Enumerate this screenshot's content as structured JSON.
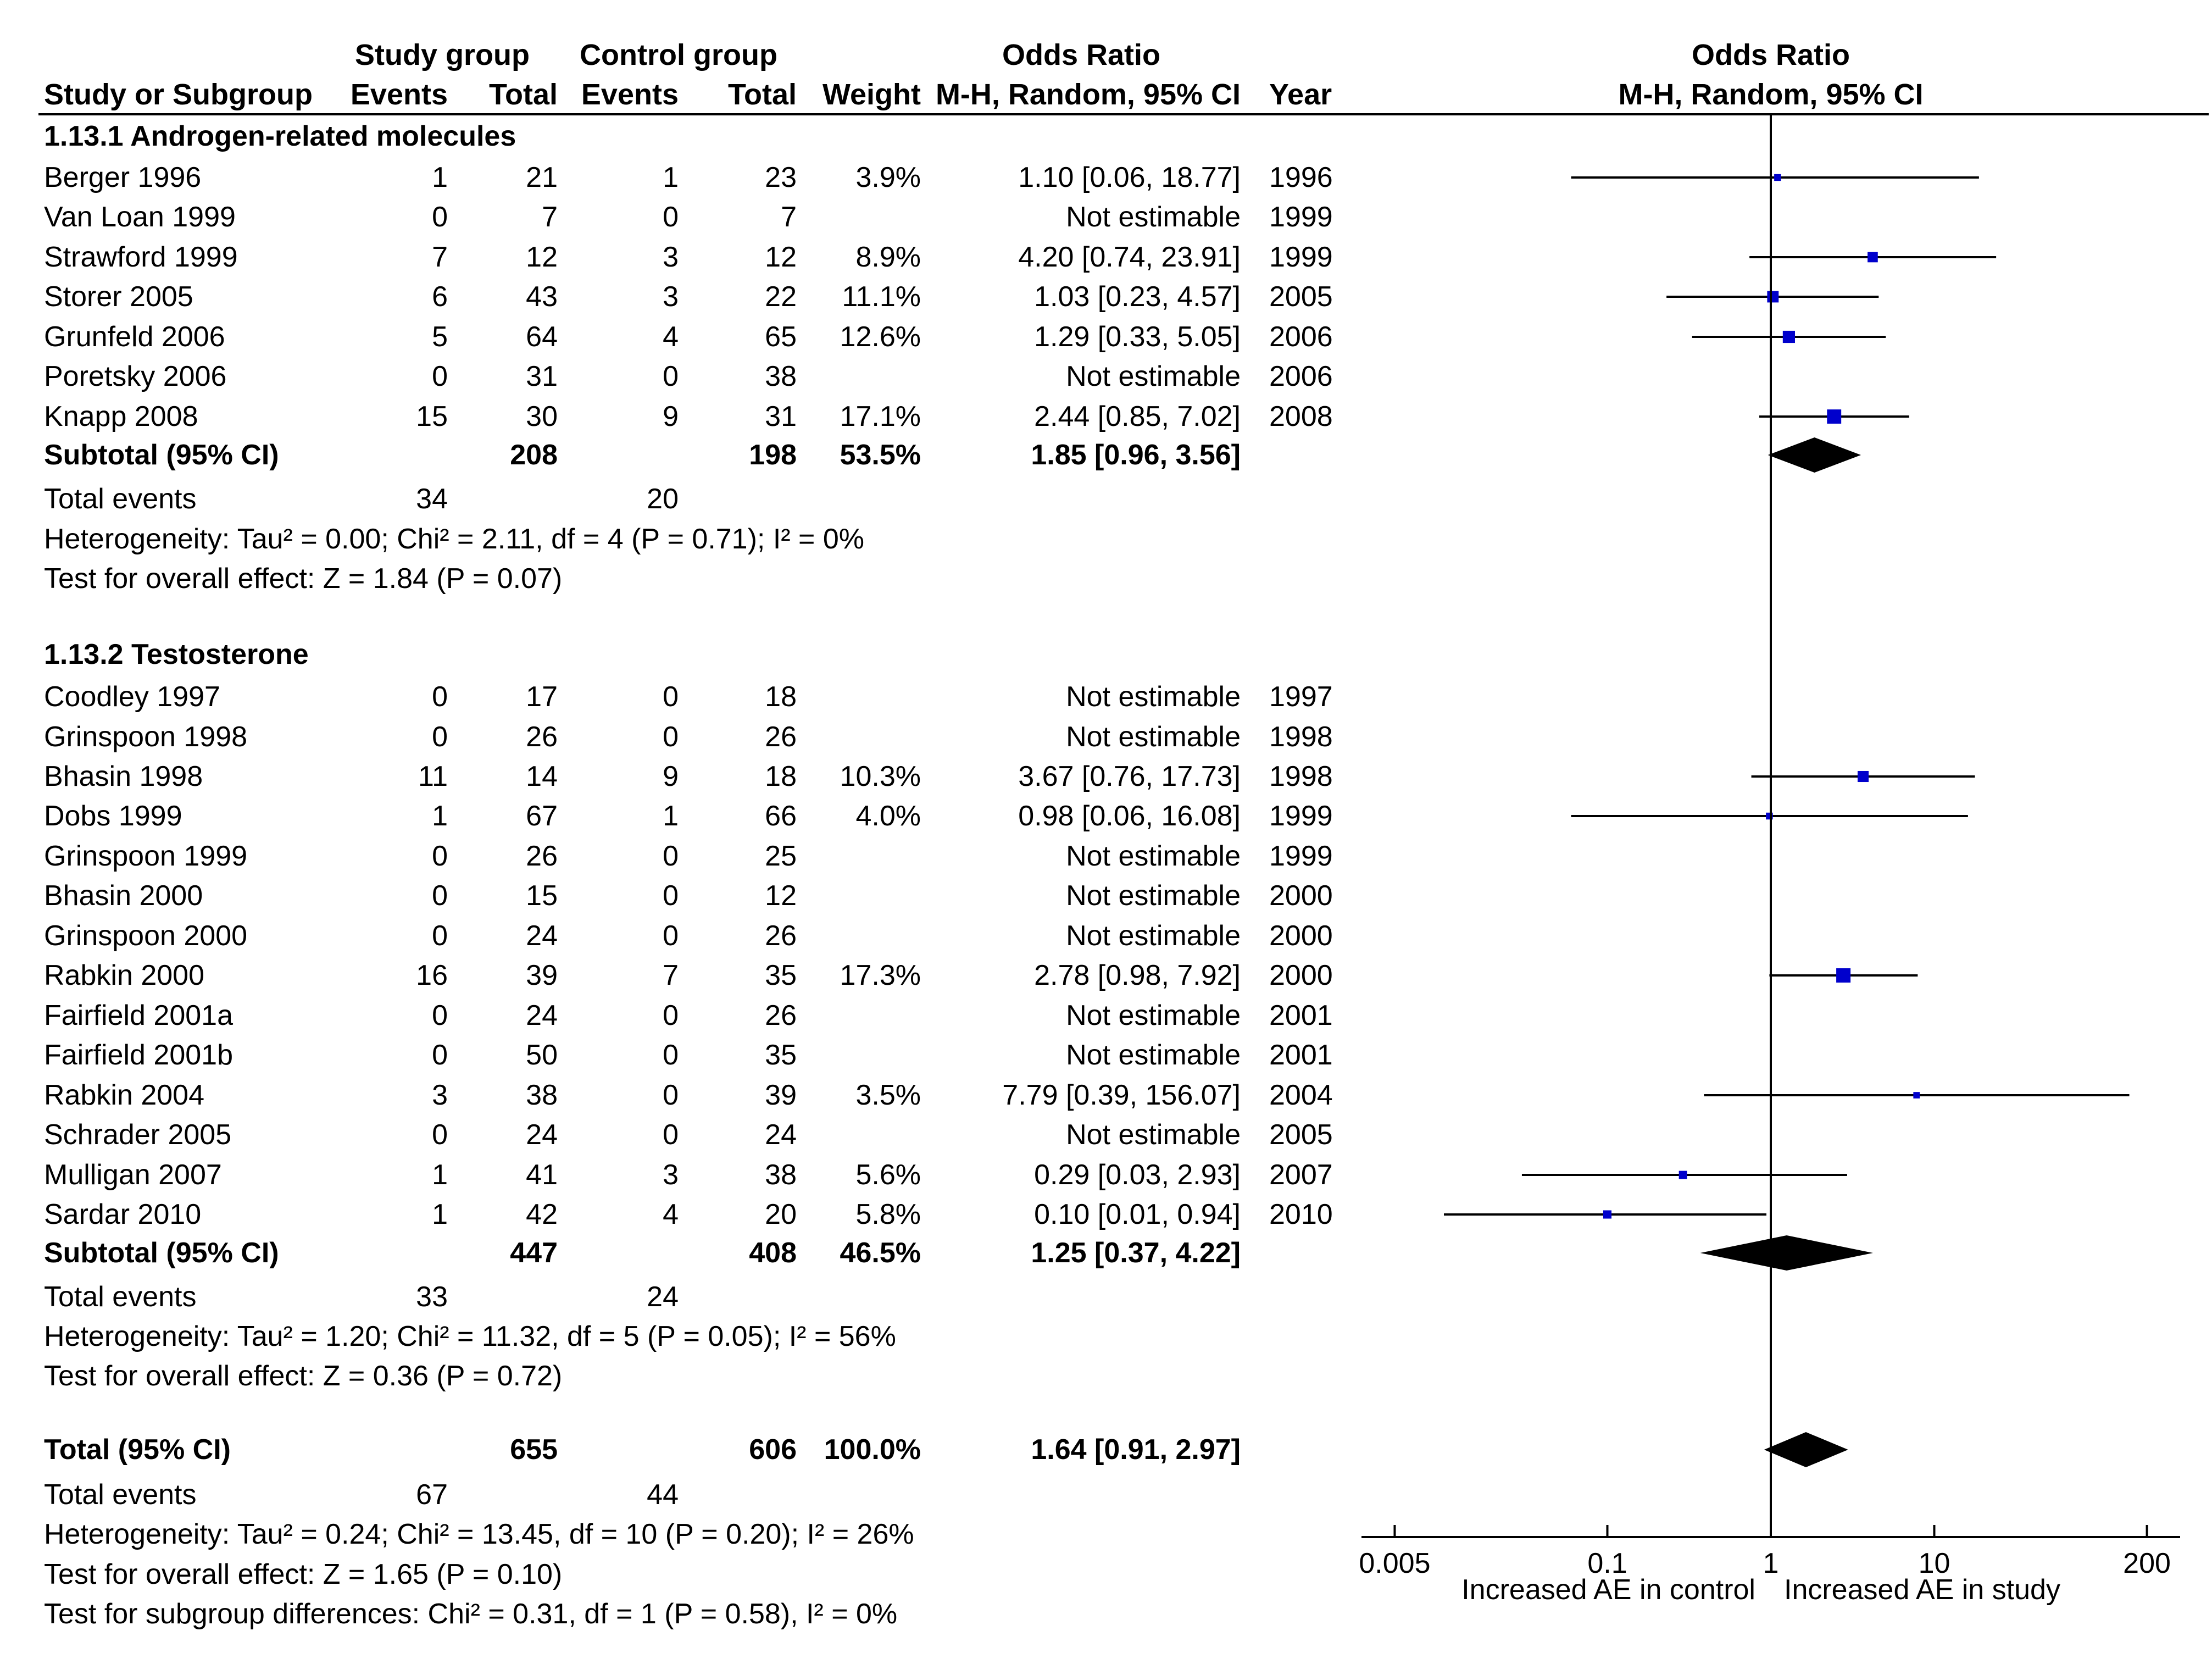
{
  "chart_data": {
    "type": "forest",
    "headers": {
      "study_group": "Study group",
      "control_group": "Control group",
      "odds_ratio": "Odds Ratio",
      "study_or_subgroup": "Study or Subgroup",
      "events": "Events",
      "total": "Total",
      "weight": "Weight",
      "method": "M-H, Random, 95% CI",
      "year": "Year"
    },
    "x_axis": {
      "scale": "log",
      "range": [
        0.005,
        200
      ],
      "ticks": [
        "0.005",
        "0.1",
        "1",
        "10",
        "200"
      ],
      "tick_values": [
        0.005,
        0.1,
        1,
        10,
        200
      ],
      "label_left": "Increased AE in control",
      "label_right": "Increased AE in study"
    },
    "colors": {
      "marker": "#0000cc",
      "line": "#000000"
    },
    "subgroups": [
      {
        "title": "1.13.1 Androgen-related molecules",
        "studies": [
          {
            "name": "Berger 1996",
            "e1": "1",
            "t1": "21",
            "e2": "1",
            "t2": "23",
            "weight": "3.9%",
            "ci": "1.10 [0.06, 18.77]",
            "year": "1996",
            "or": 1.1,
            "lo": 0.06,
            "hi": 18.77,
            "w": 3.9
          },
          {
            "name": "Van Loan 1999",
            "e1": "0",
            "t1": "7",
            "e2": "0",
            "t2": "7",
            "weight": "",
            "ci": "Not estimable",
            "year": "1999",
            "or": null,
            "lo": null,
            "hi": null,
            "w": 0
          },
          {
            "name": "Strawford 1999",
            "e1": "7",
            "t1": "12",
            "e2": "3",
            "t2": "12",
            "weight": "8.9%",
            "ci": "4.20 [0.74, 23.91]",
            "year": "1999",
            "or": 4.2,
            "lo": 0.74,
            "hi": 23.91,
            "w": 8.9
          },
          {
            "name": "Storer 2005",
            "e1": "6",
            "t1": "43",
            "e2": "3",
            "t2": "22",
            "weight": "11.1%",
            "ci": "1.03 [0.23, 4.57]",
            "year": "2005",
            "or": 1.03,
            "lo": 0.23,
            "hi": 4.57,
            "w": 11.1
          },
          {
            "name": "Grunfeld 2006",
            "e1": "5",
            "t1": "64",
            "e2": "4",
            "t2": "65",
            "weight": "12.6%",
            "ci": "1.29 [0.33, 5.05]",
            "year": "2006",
            "or": 1.29,
            "lo": 0.33,
            "hi": 5.05,
            "w": 12.6
          },
          {
            "name": "Poretsky 2006",
            "e1": "0",
            "t1": "31",
            "e2": "0",
            "t2": "38",
            "weight": "",
            "ci": "Not estimable",
            "year": "2006",
            "or": null,
            "lo": null,
            "hi": null,
            "w": 0
          },
          {
            "name": "Knapp 2008",
            "e1": "15",
            "t1": "30",
            "e2": "9",
            "t2": "31",
            "weight": "17.1%",
            "ci": "2.44 [0.85, 7.02]",
            "year": "2008",
            "or": 2.44,
            "lo": 0.85,
            "hi": 7.02,
            "w": 17.1
          }
        ],
        "subtotal": {
          "label": "Subtotal (95% CI)",
          "t1": "208",
          "t2": "198",
          "weight": "53.5%",
          "ci": "1.85 [0.96, 3.56]",
          "or": 1.85,
          "lo": 0.96,
          "hi": 3.56
        },
        "total_events": {
          "label": "Total events",
          "e1": "34",
          "e2": "20"
        },
        "heterogeneity": "Heterogeneity: Tau² = 0.00; Chi² = 2.11, df = 4 (P = 0.71); I² = 0%",
        "overall_effect": "Test for overall effect: Z = 1.84 (P = 0.07)"
      },
      {
        "title": "1.13.2 Testosterone",
        "studies": [
          {
            "name": "Coodley 1997",
            "e1": "0",
            "t1": "17",
            "e2": "0",
            "t2": "18",
            "weight": "",
            "ci": "Not estimable",
            "year": "1997",
            "or": null,
            "lo": null,
            "hi": null,
            "w": 0
          },
          {
            "name": "Grinspoon 1998",
            "e1": "0",
            "t1": "26",
            "e2": "0",
            "t2": "26",
            "weight": "",
            "ci": "Not estimable",
            "year": "1998",
            "or": null,
            "lo": null,
            "hi": null,
            "w": 0
          },
          {
            "name": "Bhasin 1998",
            "e1": "11",
            "t1": "14",
            "e2": "9",
            "t2": "18",
            "weight": "10.3%",
            "ci": "3.67 [0.76, 17.73]",
            "year": "1998",
            "or": 3.67,
            "lo": 0.76,
            "hi": 17.73,
            "w": 10.3
          },
          {
            "name": "Dobs 1999",
            "e1": "1",
            "t1": "67",
            "e2": "1",
            "t2": "66",
            "weight": "4.0%",
            "ci": "0.98 [0.06, 16.08]",
            "year": "1999",
            "or": 0.98,
            "lo": 0.06,
            "hi": 16.08,
            "w": 4.0
          },
          {
            "name": "Grinspoon 1999",
            "e1": "0",
            "t1": "26",
            "e2": "0",
            "t2": "25",
            "weight": "",
            "ci": "Not estimable",
            "year": "1999",
            "or": null,
            "lo": null,
            "hi": null,
            "w": 0
          },
          {
            "name": "Bhasin 2000",
            "e1": "0",
            "t1": "15",
            "e2": "0",
            "t2": "12",
            "weight": "",
            "ci": "Not estimable",
            "year": "2000",
            "or": null,
            "lo": null,
            "hi": null,
            "w": 0
          },
          {
            "name": "Grinspoon 2000",
            "e1": "0",
            "t1": "24",
            "e2": "0",
            "t2": "26",
            "weight": "",
            "ci": "Not estimable",
            "year": "2000",
            "or": null,
            "lo": null,
            "hi": null,
            "w": 0
          },
          {
            "name": "Rabkin 2000",
            "e1": "16",
            "t1": "39",
            "e2": "7",
            "t2": "35",
            "weight": "17.3%",
            "ci": "2.78 [0.98, 7.92]",
            "year": "2000",
            "or": 2.78,
            "lo": 0.98,
            "hi": 7.92,
            "w": 17.3
          },
          {
            "name": "Fairfield 2001a",
            "e1": "0",
            "t1": "24",
            "e2": "0",
            "t2": "26",
            "weight": "",
            "ci": "Not estimable",
            "year": "2001",
            "or": null,
            "lo": null,
            "hi": null,
            "w": 0
          },
          {
            "name": "Fairfield 2001b",
            "e1": "0",
            "t1": "50",
            "e2": "0",
            "t2": "35",
            "weight": "",
            "ci": "Not estimable",
            "year": "2001",
            "or": null,
            "lo": null,
            "hi": null,
            "w": 0
          },
          {
            "name": "Rabkin 2004",
            "e1": "3",
            "t1": "38",
            "e2": "0",
            "t2": "39",
            "weight": "3.5%",
            "ci": "7.79 [0.39, 156.07]",
            "year": "2004",
            "or": 7.79,
            "lo": 0.39,
            "hi": 156.07,
            "w": 3.5
          },
          {
            "name": "Schrader 2005",
            "e1": "0",
            "t1": "24",
            "e2": "0",
            "t2": "24",
            "weight": "",
            "ci": "Not estimable",
            "year": "2005",
            "or": null,
            "lo": null,
            "hi": null,
            "w": 0
          },
          {
            "name": "Mulligan 2007",
            "e1": "1",
            "t1": "41",
            "e2": "3",
            "t2": "38",
            "weight": "5.6%",
            "ci": "0.29 [0.03, 2.93]",
            "year": "2007",
            "or": 0.29,
            "lo": 0.03,
            "hi": 2.93,
            "w": 5.6
          },
          {
            "name": "Sardar 2010",
            "e1": "1",
            "t1": "42",
            "e2": "4",
            "t2": "20",
            "weight": "5.8%",
            "ci": "0.10 [0.01, 0.94]",
            "year": "2010",
            "or": 0.1,
            "lo": 0.01,
            "hi": 0.94,
            "w": 5.8
          }
        ],
        "subtotal": {
          "label": "Subtotal (95% CI)",
          "t1": "447",
          "t2": "408",
          "weight": "46.5%",
          "ci": "1.25 [0.37, 4.22]",
          "or": 1.25,
          "lo": 0.37,
          "hi": 4.22
        },
        "total_events": {
          "label": "Total events",
          "e1": "33",
          "e2": "24"
        },
        "heterogeneity": "Heterogeneity: Tau² = 1.20; Chi² = 11.32, df = 5 (P = 0.05); I² = 56%",
        "overall_effect": "Test for overall effect: Z = 0.36 (P = 0.72)"
      }
    ],
    "total": {
      "label": "Total (95% CI)",
      "t1": "655",
      "t2": "606",
      "weight": "100.0%",
      "ci": "1.64 [0.91, 2.97]",
      "or": 1.64,
      "lo": 0.91,
      "hi": 2.97
    },
    "total_events": {
      "label": "Total events",
      "e1": "67",
      "e2": "44"
    },
    "heterogeneity": "Heterogeneity: Tau² = 0.24; Chi² = 13.45, df = 10 (P = 0.20); I² = 26%",
    "overall_effect": "Test for overall effect: Z = 1.65 (P = 0.10)",
    "subgroup_differences": "Test for subgroup differences: Chi² = 0.31, df = 1 (P = 0.58), I² = 0%"
  }
}
